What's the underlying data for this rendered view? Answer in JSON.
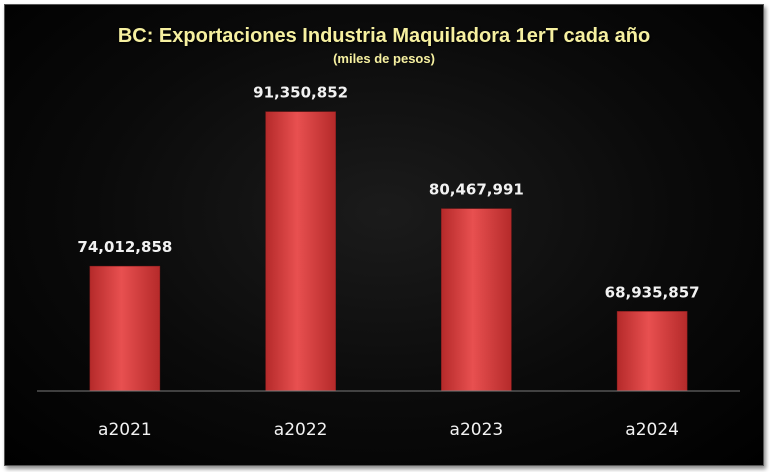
{
  "chart_data": {
    "type": "bar",
    "title": "BC: Exportaciones Industria Maquiladora 1erT cada año",
    "subtitle": "(miles de pesos)",
    "categories": [
      "a2021",
      "a2022",
      "a2023",
      "a2024"
    ],
    "values": [
      74012858,
      91350852,
      80467991,
      68935857
    ],
    "data_labels": [
      "74,012,858",
      "91,350,852",
      "80,467,991",
      "68,935,857"
    ],
    "ylim": [
      60000000,
      93000000
    ],
    "grid": false,
    "legend": "none",
    "colors": {
      "bar": "#d83a3a",
      "bar_highlight": "#f07070",
      "background": "#000000",
      "title": "#f6f0a0",
      "text": "#f2f2f2",
      "axis": "#7a7a7a"
    }
  }
}
